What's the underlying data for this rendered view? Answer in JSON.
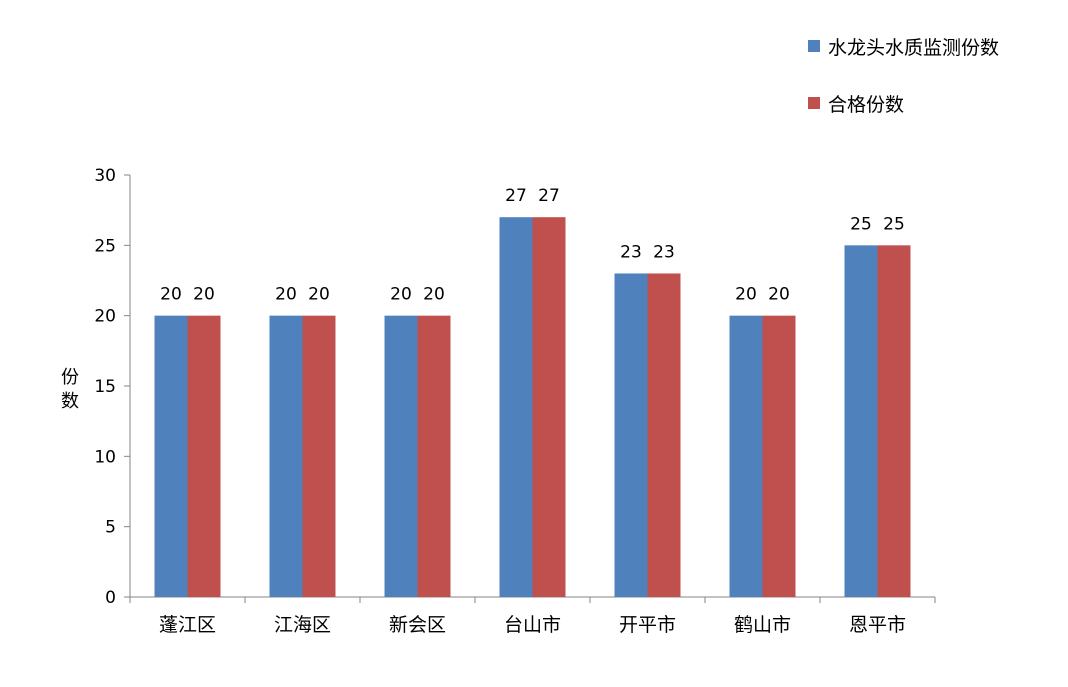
{
  "chart_data": {
    "type": "bar",
    "title": "",
    "xlabel": "",
    "ylabel": "份数",
    "ylim": [
      0,
      30
    ],
    "yticks": [
      0,
      5,
      10,
      15,
      20,
      25,
      30
    ],
    "grid": false,
    "legend_position": "top-right",
    "categories": [
      "蓬江区",
      "江海区",
      "新会区",
      "台山市",
      "开平市",
      "鹤山市",
      "恩平市"
    ],
    "series": [
      {
        "name": "水龙头水质监测份数",
        "color": "#4f81bd",
        "values": [
          20,
          20,
          20,
          27,
          23,
          20,
          25
        ]
      },
      {
        "name": "合格份数",
        "color": "#c0504d",
        "values": [
          20,
          20,
          20,
          27,
          23,
          20,
          25
        ]
      }
    ]
  }
}
